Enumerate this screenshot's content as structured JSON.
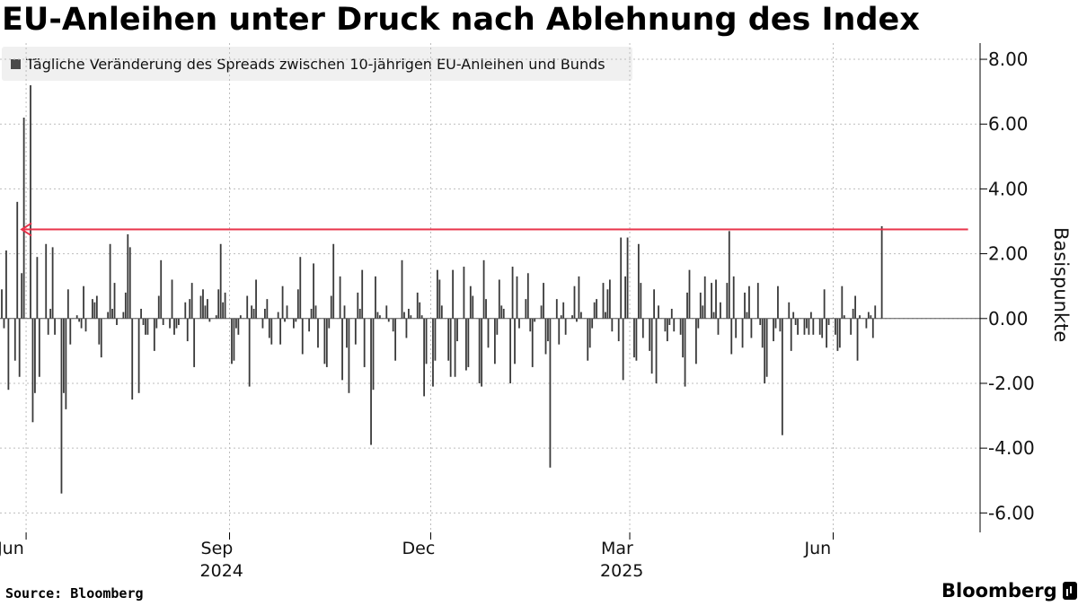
{
  "title": "EU-Anleihen unter Druck nach Ablehnung des Index",
  "legend_label": "Tägliche Veränderung des Spreads zwischen 10-jährigen EU-Anleihen und Bunds",
  "source": "Source: Bloomberg",
  "brand": "Bloomberg",
  "colors": {
    "bars": "#3a3a3a",
    "arrow": "#e8334a",
    "grid": "#bdbdbd"
  },
  "chart_data": {
    "type": "bar",
    "ylabel": "Basispunkte",
    "ylim": [
      -6.6,
      8.5
    ],
    "yticks": [
      8,
      6,
      4,
      2,
      0,
      -2,
      -4,
      -6
    ],
    "ytick_labels": [
      "8.00",
      "6.00",
      "4.00",
      "2.00",
      "0.00",
      "-2.00",
      "-4.00",
      "-6.00"
    ],
    "x_domain": [
      "2024-05-21",
      "2025-08-04"
    ],
    "month_ticks": [
      {
        "date": "2024-06-01",
        "label": "Jun",
        "year": ""
      },
      {
        "date": "2024-09-01",
        "label": "Sep",
        "year": "2024"
      },
      {
        "date": "2024-12-01",
        "label": "Dec",
        "year": ""
      },
      {
        "date": "2025-03-01",
        "label": "Mar",
        "year": "2025"
      },
      {
        "date": "2025-06-01",
        "label": "Jun",
        "year": ""
      }
    ],
    "grid_months": [
      "2024-06-01",
      "2024-09-01",
      "2024-12-01",
      "2025-03-01",
      "2025-06-01"
    ],
    "annotation": {
      "type": "arrow",
      "value": 2.75,
      "from_date": "2025-08-01",
      "to_date": "2024-05-30"
    },
    "start_date": "2024-05-21",
    "values": [
      0.9,
      -0.3,
      2.1,
      -2.2,
      -1.3,
      3.6,
      -1.8,
      1.4,
      6.2,
      7.2,
      -3.2,
      -2.3,
      1.9,
      -1.8,
      2.3,
      -0.5,
      0.3,
      2.2,
      -0.5,
      -5.4,
      -2.3,
      -2.8,
      0.9,
      -0.8,
      0.1,
      -0.1,
      -0.3,
      1.0,
      -0.4,
      0.6,
      0.5,
      0.7,
      -0.8,
      -1.2,
      0.2,
      2.3,
      0.3,
      1.1,
      -0.2,
      0.2,
      0.8,
      2.6,
      2.2,
      -2.5,
      -2.3,
      0.3,
      -0.2,
      -0.5,
      -0.5,
      -1.0,
      -0.3,
      0.7,
      1.8,
      -0.2,
      -0.3,
      1.2,
      -0.5,
      -0.3,
      -0.2,
      0.5,
      -0.7,
      0.6,
      1.1,
      -1.5,
      0.7,
      0.9,
      0.4,
      0.6,
      -0.1,
      0.1,
      0.9,
      2.3,
      0.5,
      0.8,
      -1.4,
      -1.3,
      -0.3,
      -0.5,
      0.1,
      0.7,
      -2.1,
      0.4,
      0.3,
      1.2,
      -0.3,
      0.3,
      0.6,
      -0.6,
      -0.8,
      0.2,
      -0.8,
      1.0,
      -0.1,
      0.4,
      -0.3,
      -0.1,
      0.9,
      1.9,
      -1.1,
      -0.4,
      0.3,
      1.7,
      0.4,
      -0.9,
      -1.4,
      -1.5,
      -0.3,
      0.7,
      2.3,
      1.3,
      -1.9,
      0.4,
      -0.9,
      -2.3,
      -0.8,
      0.8,
      0.3,
      1.5,
      -1.5,
      -3.9,
      -2.2,
      1.3,
      0.2,
      0.1,
      0.4,
      -0.1,
      0.0,
      -0.4,
      -1.3,
      1.8,
      0.2,
      -0.6,
      0.3,
      0.1,
      0.8,
      0.5,
      0.1,
      -2.4,
      -1.4,
      -2.1,
      -1.3,
      1.5,
      1.2,
      0.4,
      -1.3,
      -1.8,
      1.5,
      -1.8,
      -0.7,
      1.6,
      -1.6,
      -1.5,
      1.0,
      0.7,
      -2.0,
      -2.1,
      1.8,
      0.6,
      -0.9,
      -1.4,
      -0.5,
      1.2,
      0.4,
      0.3,
      -2.0,
      1.6,
      -1.4,
      1.3,
      -0.3,
      0.6,
      1.4,
      -0.4,
      -1.5,
      -0.1,
      0.4,
      1.1,
      -1.1,
      -0.7,
      -4.6,
      0.6,
      -0.8,
      0.1,
      0.5,
      -0.5,
      0.1,
      1.0,
      -0.1,
      1.3,
      0.2,
      -1.3,
      -0.9,
      -0.3,
      0.5,
      0.6,
      1.1,
      0.2,
      0.9,
      1.2,
      -0.4,
      -0.7,
      2.5,
      -1.9,
      1.3,
      2.5,
      -1.2,
      -1.3,
      2.3,
      1.1,
      -0.6,
      -1.0,
      -1.7,
      0.9,
      -2.0,
      0.4,
      -0.4,
      -0.7,
      -0.2,
      0.3,
      -0.4,
      -0.5,
      -1.2,
      -2.1,
      0.8,
      1.5,
      -1.4,
      -0.3,
      0.8,
      0.4,
      1.3,
      1.1,
      0.2,
      1.2,
      -0.5,
      0.5,
      1.1,
      2.7,
      -1.1,
      1.3,
      -0.6,
      -0.9,
      0.8,
      0.2,
      1.0,
      -0.6,
      1.1,
      -0.2,
      -0.9,
      -2.0,
      -1.8,
      -0.7,
      -0.3,
      1.0,
      -0.4,
      -3.6,
      0.5,
      -1.0,
      0.2,
      -0.2,
      -0.5,
      -0.5,
      -0.3,
      -0.5,
      0.2,
      -0.5,
      -0.5,
      -0.6,
      0.9,
      -0.9,
      -0.2,
      -0.5,
      -1.0,
      -0.9,
      1.0,
      0.1,
      -0.5,
      0.3,
      0.7,
      -1.3,
      0.1,
      -0.3,
      0.2,
      0.1,
      -0.6,
      0.4,
      2.85
    ]
  }
}
